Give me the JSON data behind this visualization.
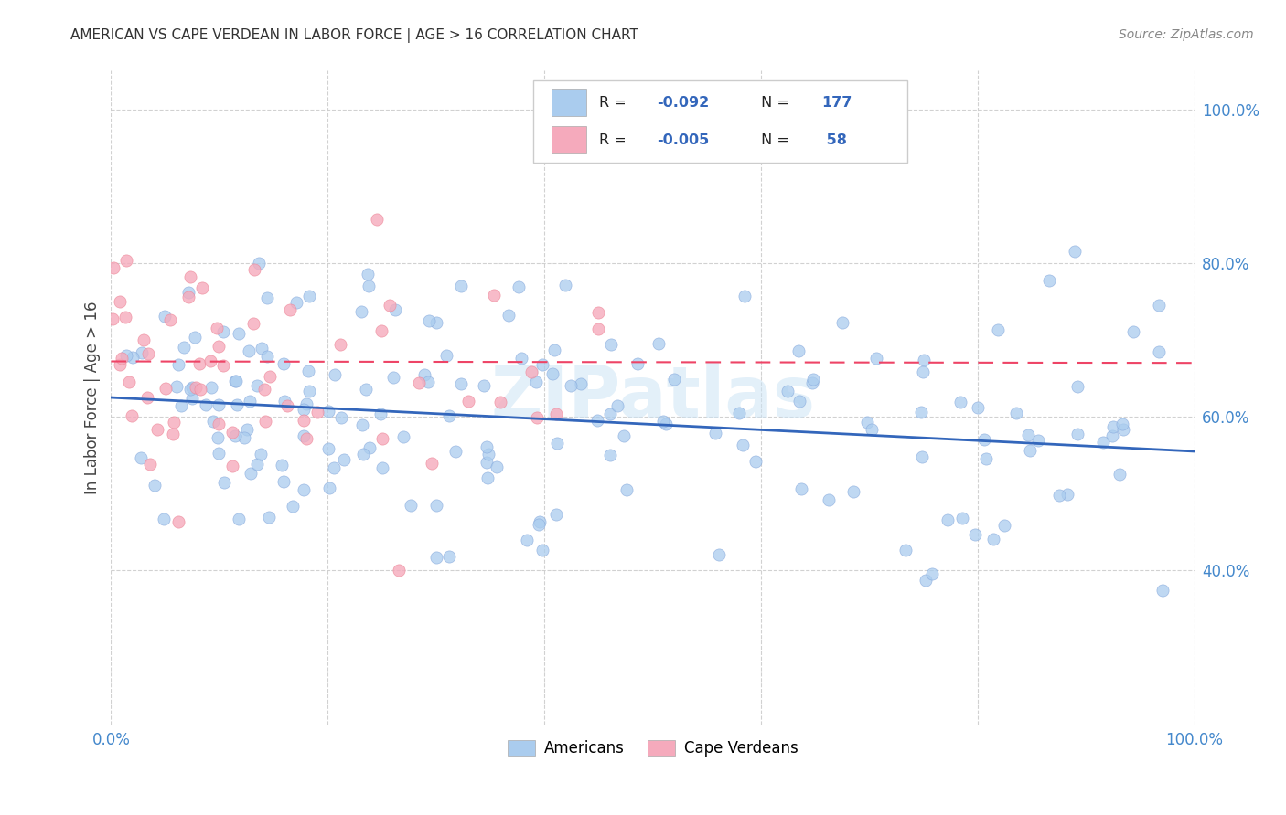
{
  "title": "AMERICAN VS CAPE VERDEAN IN LABOR FORCE | AGE > 16 CORRELATION CHART",
  "source": "Source: ZipAtlas.com",
  "ylabel": "In Labor Force | Age > 16",
  "xlim": [
    0.0,
    1.0
  ],
  "ylim": [
    0.2,
    1.05
  ],
  "y_ticks": [
    0.4,
    0.6,
    0.8,
    1.0
  ],
  "y_tick_labels": [
    "40.0%",
    "60.0%",
    "80.0%",
    "100.0%"
  ],
  "american_color": "#aaccee",
  "american_edge_color": "#88aadd",
  "cape_verdean_color": "#f5aabc",
  "cape_verdean_edge_color": "#ee8899",
  "american_line_color": "#3366bb",
  "cape_verdean_line_color": "#ee4466",
  "watermark": "ZIPatlas",
  "background_color": "#ffffff",
  "grid_color": "#cccccc",
  "title_color": "#333333",
  "tick_color": "#4488cc",
  "american_N": 177,
  "cape_verdean_N": 58,
  "am_line_y0": 0.625,
  "am_line_y1": 0.555,
  "cv_line_y0": 0.672,
  "cv_line_y1": 0.67,
  "legend_r1": "-0.092",
  "legend_n1": "177",
  "legend_r2": "-0.005",
  "legend_n2": "58"
}
